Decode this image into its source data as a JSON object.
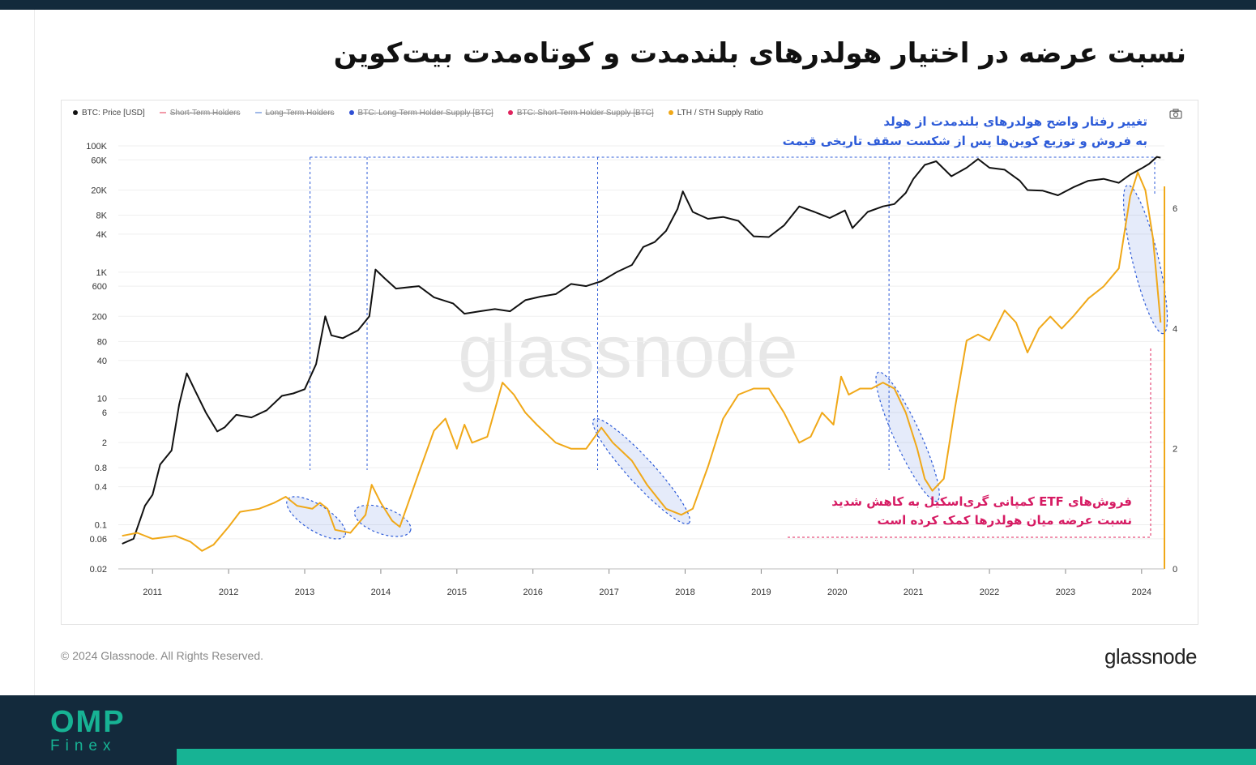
{
  "page": {
    "title": "نسبت عرضه در اختیار هولدرهای بلندمدت و کوتاه‌مدت بیت‌کوین",
    "copyright": "© 2024 Glassnode. All Rights Reserved.",
    "brand": "glassnode",
    "watermark": "glassnode",
    "logo_main": "OMP",
    "logo_sub": "Finex"
  },
  "legend": [
    {
      "label": "BTC: Price [USD]",
      "color": "#111111",
      "struck": false
    },
    {
      "label": "Short-Term Holders",
      "color": "#f29aa8",
      "struck": true
    },
    {
      "label": "Long-Term Holders",
      "color": "#9fb8e8",
      "struck": true
    },
    {
      "label": "BTC: Long-Term Holder Supply [BTC]",
      "color": "#2f4fd4",
      "struck": true
    },
    {
      "label": "BTC: Short-Term Holder Supply [BTC]",
      "color": "#e0245e",
      "struck": true
    },
    {
      "label": "LTH / STH Supply Ratio",
      "color": "#f0a818",
      "struck": false
    }
  ],
  "annotations": {
    "blue": [
      "تغییر رفتار واضح هولدرهای بلندمدت از هولد",
      "به فروش و توزیع کوین‌ها پس از شکست سقف تاریخی قیمت"
    ],
    "pink": [
      "فروش‌های ETF کمپانی گری‌اسکیل به کاهش شدید",
      "نسبت عرضه میان هولدرها کمک کرده است"
    ]
  },
  "colors": {
    "price": "#111111",
    "ratio": "#f0a818",
    "highlight": "#2d5bd8",
    "pink": "#e0245e",
    "footer": "#132a3c",
    "accent": "#17b394"
  },
  "chart_data": {
    "type": "line",
    "x_ticks": [
      "2011",
      "2012",
      "2013",
      "2014",
      "2015",
      "2016",
      "2017",
      "2018",
      "2019",
      "2020",
      "2021",
      "2022",
      "2023",
      "2024"
    ],
    "y_left_ticks": [
      "100K",
      "60K",
      "20K",
      "8K",
      "4K",
      "1K",
      "600",
      "200",
      "80",
      "40",
      "10",
      "6",
      "2",
      "0.8",
      "0.4",
      "0.1",
      "0.06",
      "0.02"
    ],
    "y_left_values": [
      100000,
      60000,
      20000,
      8000,
      4000,
      1000,
      600,
      200,
      80,
      40,
      10,
      6,
      2,
      0.8,
      0.4,
      0.1,
      0.06,
      0.02
    ],
    "y_right_ticks": [
      "6",
      "4",
      "2",
      "0"
    ],
    "y_right_values": [
      6,
      4,
      2,
      0
    ],
    "xlim": [
      2010.55,
      2024.3
    ],
    "y_left_scale": "log",
    "y_left_range": [
      0.02,
      100000
    ],
    "y_right_range": [
      0,
      6.5
    ],
    "series": [
      {
        "name": "BTC: Price [USD]",
        "axis": "left",
        "points": [
          [
            2010.6,
            0.05
          ],
          [
            2010.75,
            0.06
          ],
          [
            2010.9,
            0.2
          ],
          [
            2011.0,
            0.3
          ],
          [
            2011.1,
            0.9
          ],
          [
            2011.25,
            1.5
          ],
          [
            2011.35,
            8
          ],
          [
            2011.45,
            25
          ],
          [
            2011.55,
            14
          ],
          [
            2011.7,
            6
          ],
          [
            2011.85,
            3
          ],
          [
            2011.95,
            3.5
          ],
          [
            2012.1,
            5.5
          ],
          [
            2012.3,
            5
          ],
          [
            2012.5,
            6.5
          ],
          [
            2012.7,
            11
          ],
          [
            2012.85,
            12
          ],
          [
            2013.0,
            14
          ],
          [
            2013.15,
            35
          ],
          [
            2013.27,
            200
          ],
          [
            2013.35,
            100
          ],
          [
            2013.5,
            90
          ],
          [
            2013.7,
            120
          ],
          [
            2013.85,
            200
          ],
          [
            2013.93,
            1100
          ],
          [
            2014.05,
            800
          ],
          [
            2014.2,
            550
          ],
          [
            2014.5,
            600
          ],
          [
            2014.7,
            400
          ],
          [
            2014.95,
            320
          ],
          [
            2015.1,
            220
          ],
          [
            2015.3,
            240
          ],
          [
            2015.5,
            260
          ],
          [
            2015.7,
            240
          ],
          [
            2015.9,
            360
          ],
          [
            2016.1,
            410
          ],
          [
            2016.3,
            450
          ],
          [
            2016.5,
            650
          ],
          [
            2016.7,
            600
          ],
          [
            2016.9,
            720
          ],
          [
            2017.1,
            1000
          ],
          [
            2017.3,
            1300
          ],
          [
            2017.45,
            2500
          ],
          [
            2017.6,
            3000
          ],
          [
            2017.75,
            4500
          ],
          [
            2017.9,
            10000
          ],
          [
            2017.97,
            19000
          ],
          [
            2018.1,
            9000
          ],
          [
            2018.3,
            7000
          ],
          [
            2018.5,
            7500
          ],
          [
            2018.7,
            6500
          ],
          [
            2018.9,
            3700
          ],
          [
            2019.1,
            3600
          ],
          [
            2019.3,
            5500
          ],
          [
            2019.5,
            11000
          ],
          [
            2019.7,
            9000
          ],
          [
            2019.9,
            7200
          ],
          [
            2020.1,
            9500
          ],
          [
            2020.2,
            5000
          ],
          [
            2020.4,
            9000
          ],
          [
            2020.6,
            11000
          ],
          [
            2020.75,
            12000
          ],
          [
            2020.9,
            18000
          ],
          [
            2021.0,
            30000
          ],
          [
            2021.15,
            50000
          ],
          [
            2021.3,
            57000
          ],
          [
            2021.5,
            33000
          ],
          [
            2021.7,
            45000
          ],
          [
            2021.85,
            62000
          ],
          [
            2022.0,
            45000
          ],
          [
            2022.2,
            42000
          ],
          [
            2022.4,
            28000
          ],
          [
            2022.5,
            20000
          ],
          [
            2022.7,
            19500
          ],
          [
            2022.9,
            16500
          ],
          [
            2023.1,
            22000
          ],
          [
            2023.3,
            28000
          ],
          [
            2023.5,
            30000
          ],
          [
            2023.7,
            26000
          ],
          [
            2023.85,
            35000
          ],
          [
            2024.0,
            44000
          ],
          [
            2024.1,
            52000
          ],
          [
            2024.2,
            67000
          ],
          [
            2024.25,
            65000
          ]
        ]
      },
      {
        "name": "LTH / STH Supply Ratio",
        "axis": "right",
        "points": [
          [
            2010.6,
            0.55
          ],
          [
            2010.8,
            0.6
          ],
          [
            2011.0,
            0.5
          ],
          [
            2011.3,
            0.55
          ],
          [
            2011.5,
            0.45
          ],
          [
            2011.65,
            0.3
          ],
          [
            2011.8,
            0.4
          ],
          [
            2012.0,
            0.7
          ],
          [
            2012.15,
            0.95
          ],
          [
            2012.4,
            1.0
          ],
          [
            2012.6,
            1.1
          ],
          [
            2012.75,
            1.2
          ],
          [
            2012.9,
            1.05
          ],
          [
            2013.1,
            1.0
          ],
          [
            2013.2,
            1.1
          ],
          [
            2013.3,
            1.0
          ],
          [
            2013.4,
            0.65
          ],
          [
            2013.6,
            0.6
          ],
          [
            2013.8,
            0.9
          ],
          [
            2013.88,
            1.4
          ],
          [
            2014.0,
            1.1
          ],
          [
            2014.15,
            0.8
          ],
          [
            2014.25,
            0.7
          ],
          [
            2014.5,
            1.6
          ],
          [
            2014.7,
            2.3
          ],
          [
            2014.85,
            2.5
          ],
          [
            2015.0,
            2.0
          ],
          [
            2015.1,
            2.4
          ],
          [
            2015.2,
            2.1
          ],
          [
            2015.4,
            2.2
          ],
          [
            2015.6,
            3.1
          ],
          [
            2015.75,
            2.9
          ],
          [
            2015.9,
            2.6
          ],
          [
            2016.05,
            2.4
          ],
          [
            2016.3,
            2.1
          ],
          [
            2016.5,
            2.0
          ],
          [
            2016.7,
            2.0
          ],
          [
            2016.9,
            2.35
          ],
          [
            2017.05,
            2.1
          ],
          [
            2017.3,
            1.8
          ],
          [
            2017.5,
            1.4
          ],
          [
            2017.75,
            1.0
          ],
          [
            2017.95,
            0.9
          ],
          [
            2018.1,
            1.0
          ],
          [
            2018.3,
            1.7
          ],
          [
            2018.5,
            2.5
          ],
          [
            2018.7,
            2.9
          ],
          [
            2018.9,
            3.0
          ],
          [
            2019.1,
            3.0
          ],
          [
            2019.3,
            2.6
          ],
          [
            2019.5,
            2.1
          ],
          [
            2019.65,
            2.2
          ],
          [
            2019.8,
            2.6
          ],
          [
            2019.95,
            2.4
          ],
          [
            2020.05,
            3.2
          ],
          [
            2020.15,
            2.9
          ],
          [
            2020.3,
            3.0
          ],
          [
            2020.45,
            3.0
          ],
          [
            2020.6,
            3.1
          ],
          [
            2020.75,
            3.0
          ],
          [
            2020.9,
            2.6
          ],
          [
            2021.05,
            2.0
          ],
          [
            2021.15,
            1.5
          ],
          [
            2021.25,
            1.3
          ],
          [
            2021.4,
            1.5
          ],
          [
            2021.55,
            2.7
          ],
          [
            2021.7,
            3.8
          ],
          [
            2021.85,
            3.9
          ],
          [
            2022.0,
            3.8
          ],
          [
            2022.2,
            4.3
          ],
          [
            2022.35,
            4.1
          ],
          [
            2022.5,
            3.6
          ],
          [
            2022.65,
            4.0
          ],
          [
            2022.8,
            4.2
          ],
          [
            2022.95,
            4.0
          ],
          [
            2023.1,
            4.2
          ],
          [
            2023.3,
            4.5
          ],
          [
            2023.5,
            4.7
          ],
          [
            2023.7,
            5.0
          ],
          [
            2023.85,
            6.2
          ],
          [
            2023.95,
            6.6
          ],
          [
            2024.05,
            6.3
          ],
          [
            2024.15,
            5.5
          ],
          [
            2024.25,
            4.1
          ]
        ]
      }
    ],
    "highlights": [
      {
        "type": "ellipse",
        "from": 2013.0,
        "to": 2013.45
      },
      {
        "type": "ellipse",
        "from": 2013.8,
        "to": 2014.25
      },
      {
        "type": "ellipse",
        "from": 2016.85,
        "to": 2017.95
      },
      {
        "type": "ellipse",
        "from": 2020.65,
        "to": 2021.3
      },
      {
        "type": "ellipse",
        "from": 2023.85,
        "to": 2024.3
      }
    ]
  }
}
